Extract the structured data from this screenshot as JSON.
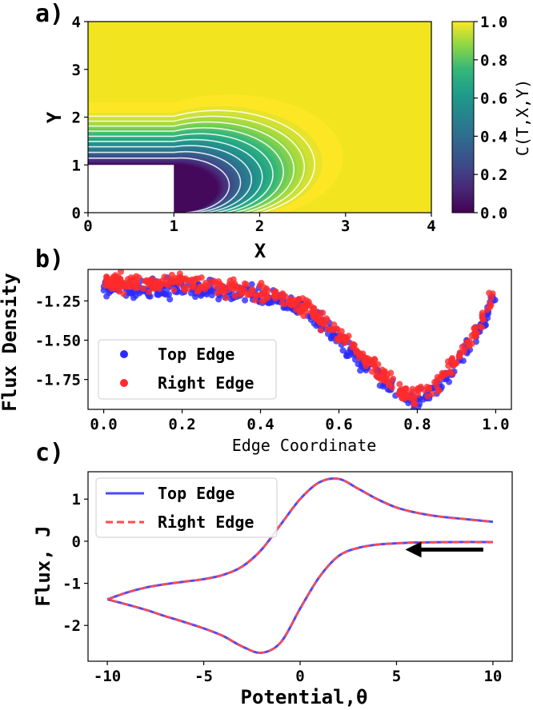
{
  "chart_data": [
    {
      "type": "heatmap",
      "panel_label": "a)",
      "xlabel": "X",
      "ylabel": "Y",
      "xlim": [
        0,
        4
      ],
      "ylim": [
        0,
        4
      ],
      "xticks": [
        "0",
        "1",
        "2",
        "3",
        "4"
      ],
      "yticks": [
        "0",
        "1",
        "2",
        "3",
        "4"
      ],
      "obstacle": {
        "x": [
          0,
          1
        ],
        "y": [
          0,
          1
        ]
      },
      "contour_levels": [
        0.1,
        0.2,
        0.3,
        0.4,
        0.5,
        0.6,
        0.7,
        0.8,
        0.9
      ],
      "colorbar": {
        "label": "C(T,X,Y)",
        "range": [
          0.0,
          1.0
        ],
        "ticks": [
          "0.0",
          "0.2",
          "0.4",
          "0.6",
          "0.8",
          "1.0"
        ],
        "colormap": "viridis"
      }
    },
    {
      "type": "scatter",
      "panel_label": "b)",
      "xlabel": "Edge Coordinate",
      "ylabel": "Flux Density",
      "xlim": [
        -0.04,
        1.04
      ],
      "ylim": [
        -1.94,
        -1.05
      ],
      "xticks": [
        "0.0",
        "0.2",
        "0.4",
        "0.6",
        "0.8",
        "1.0"
      ],
      "yticks": [
        "-1.25",
        "-1.50",
        "-1.75"
      ],
      "trend": {
        "x": [
          0.0,
          0.1,
          0.2,
          0.3,
          0.4,
          0.5,
          0.55,
          0.6,
          0.65,
          0.7,
          0.75,
          0.8,
          0.85,
          0.9,
          0.95,
          1.0
        ],
        "y": [
          -1.14,
          -1.16,
          -1.15,
          -1.17,
          -1.2,
          -1.28,
          -1.37,
          -1.48,
          -1.6,
          -1.71,
          -1.82,
          -1.87,
          -1.8,
          -1.63,
          -1.45,
          -1.2
        ]
      },
      "series": [
        {
          "name": "Top Edge",
          "color": "#2b2bff"
        },
        {
          "name": "Right Edge",
          "color": "#ff2b2b"
        }
      ],
      "legend": "lower-left"
    },
    {
      "type": "line",
      "panel_label": "c)",
      "xlabel": "Potential,θ",
      "ylabel": "Flux, J",
      "xlim": [
        -11,
        11
      ],
      "ylim": [
        -2.85,
        1.65
      ],
      "xticks": [
        "-10",
        "-5",
        "0",
        "5",
        "10"
      ],
      "yticks": [
        "1",
        "0",
        "-1",
        "-2"
      ],
      "forward_sweep": {
        "x": [
          10,
          8,
          6,
          5,
          4,
          3,
          2,
          1,
          0,
          -1,
          -2,
          -3,
          -4,
          -5,
          -6,
          -7,
          -8,
          -9,
          -10
        ],
        "y": [
          -0.02,
          -0.02,
          -0.03,
          -0.05,
          -0.08,
          -0.16,
          -0.35,
          -0.85,
          -1.6,
          -2.4,
          -2.65,
          -2.5,
          -2.25,
          -2.07,
          -1.92,
          -1.78,
          -1.63,
          -1.5,
          -1.38
        ]
      },
      "reverse_sweep": {
        "x": [
          -10,
          -9,
          -8,
          -7,
          -6,
          -5,
          -4,
          -3,
          -2,
          -1,
          0,
          1,
          2,
          3,
          4,
          5,
          6,
          7,
          8,
          10
        ],
        "y": [
          -1.38,
          -1.22,
          -1.1,
          -1.02,
          -0.96,
          -0.9,
          -0.8,
          -0.6,
          -0.2,
          0.4,
          1.0,
          1.4,
          1.48,
          1.25,
          1.0,
          0.8,
          0.68,
          0.6,
          0.55,
          0.46
        ]
      },
      "arrow": {
        "x_from": 9.5,
        "x_to": 5.5,
        "y": -0.2
      },
      "series": [
        {
          "name": "Top Edge",
          "color": "#4a4aff",
          "style": "solid"
        },
        {
          "name": "Right Edge",
          "color": "#ff4a4a",
          "style": "dashed"
        }
      ],
      "legend": "top-left"
    }
  ]
}
